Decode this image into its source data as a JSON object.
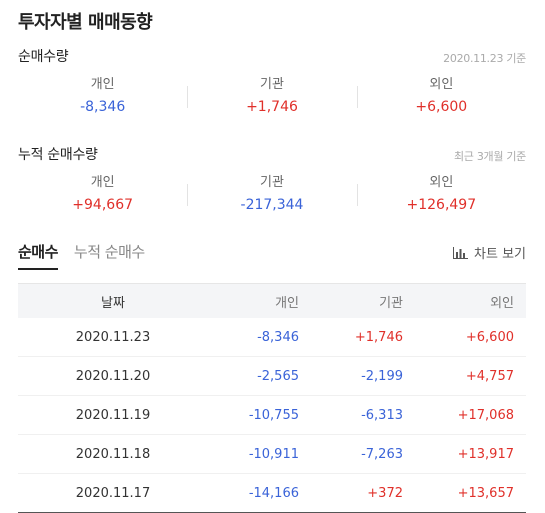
{
  "title": "투자자별 매매동향",
  "net_trade": {
    "title": "순매수량",
    "note": "2020.11.23 기준",
    "items": [
      {
        "label": "개인",
        "value": "-8,346",
        "dir": "down"
      },
      {
        "label": "기관",
        "value": "+1,746",
        "dir": "up"
      },
      {
        "label": "외인",
        "value": "+6,600",
        "dir": "up"
      }
    ]
  },
  "cumulative": {
    "title": "누적 순매수량",
    "note": "최근 3개월 기준",
    "items": [
      {
        "label": "개인",
        "value": "+94,667",
        "dir": "up"
      },
      {
        "label": "기관",
        "value": "-217,344",
        "dir": "down"
      },
      {
        "label": "외인",
        "value": "+126,497",
        "dir": "up"
      }
    ]
  },
  "tabs": [
    {
      "label": "순매수",
      "active": true
    },
    {
      "label": "누적 순매수",
      "active": false
    }
  ],
  "chart_button": {
    "label": "차트 보기",
    "icon": "bar-chart-icon"
  },
  "table": {
    "headers": [
      "날짜",
      "개인",
      "기관",
      "외인"
    ],
    "rows": [
      [
        "2020.11.23",
        "-8,346",
        "+1,746",
        "+6,600"
      ],
      [
        "2020.11.20",
        "-2,565",
        "-2,199",
        "+4,757"
      ],
      [
        "2020.11.19",
        "-10,755",
        "-6,313",
        "+17,068"
      ],
      [
        "2020.11.18",
        "-10,911",
        "-7,263",
        "+13,917"
      ],
      [
        "2020.11.17",
        "-14,166",
        "+372",
        "+13,657"
      ]
    ]
  },
  "colors": {
    "up": "#e0302a",
    "down": "#3a63d8"
  }
}
